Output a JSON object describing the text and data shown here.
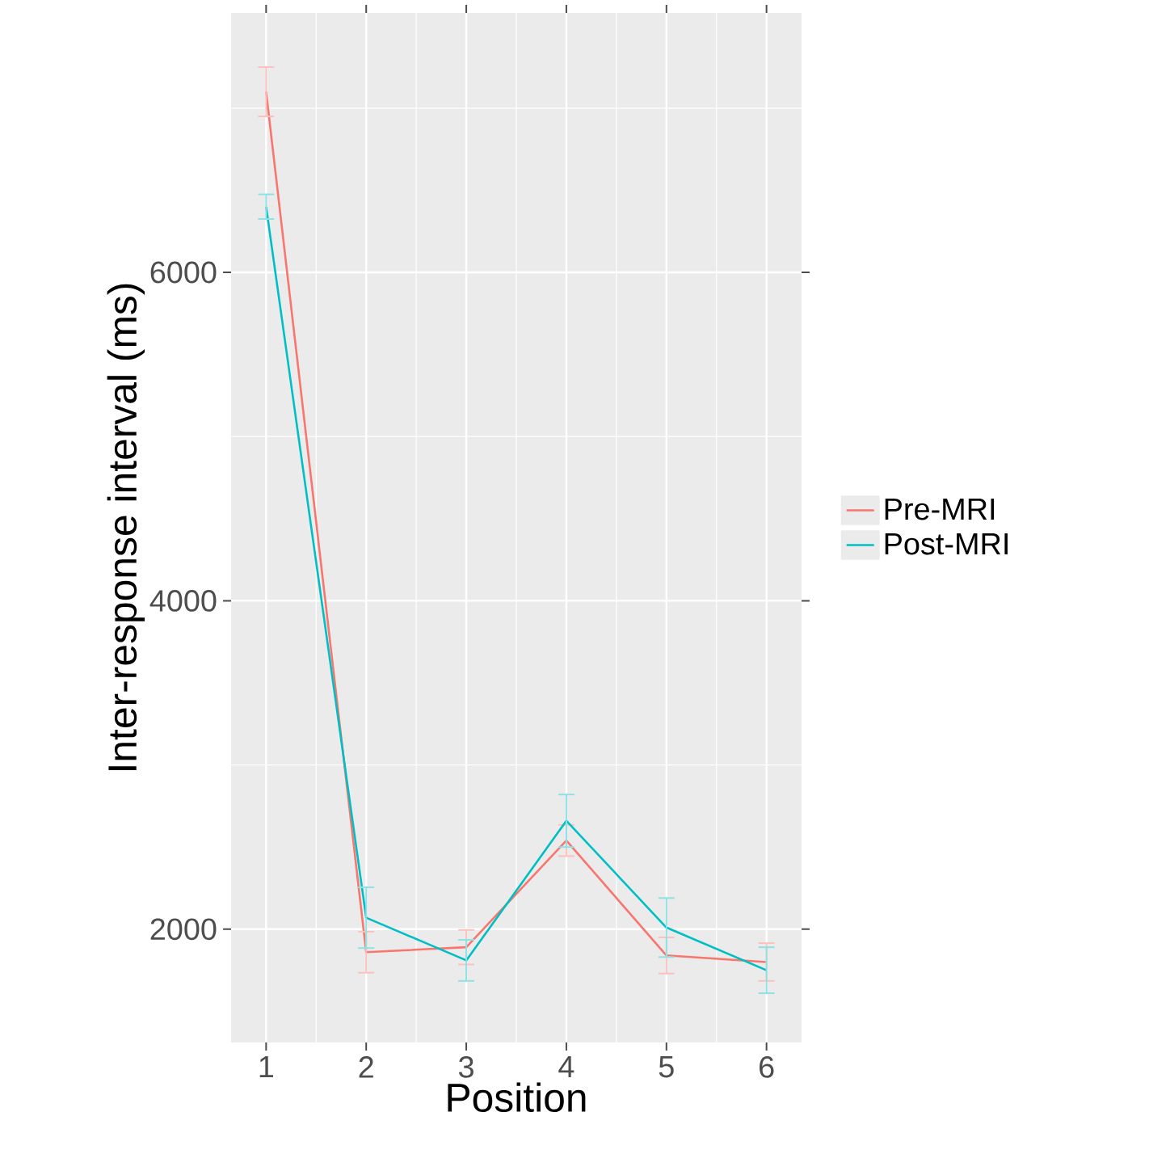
{
  "chart_data": {
    "type": "line",
    "xlabel": "Position",
    "ylabel": "Inter-response interval (ms)",
    "categories": [
      "1",
      "2",
      "3",
      "4",
      "5",
      "6"
    ],
    "series": [
      {
        "name": "Pre-MRI",
        "color": "#f8766d",
        "values": [
          7100,
          1860,
          1890,
          2540,
          1840,
          1800
        ],
        "errors": [
          150,
          125,
          105,
          95,
          110,
          115
        ]
      },
      {
        "name": "Post-MRI",
        "color": "#00bfc4",
        "values": [
          6400,
          2070,
          1810,
          2660,
          2010,
          1750
        ],
        "errors": [
          75,
          185,
          125,
          160,
          180,
          140
        ]
      }
    ],
    "ylim": [
      1310,
      7580
    ],
    "yticks": [
      2000,
      4000,
      6000
    ],
    "grid": true,
    "legend": "right"
  }
}
